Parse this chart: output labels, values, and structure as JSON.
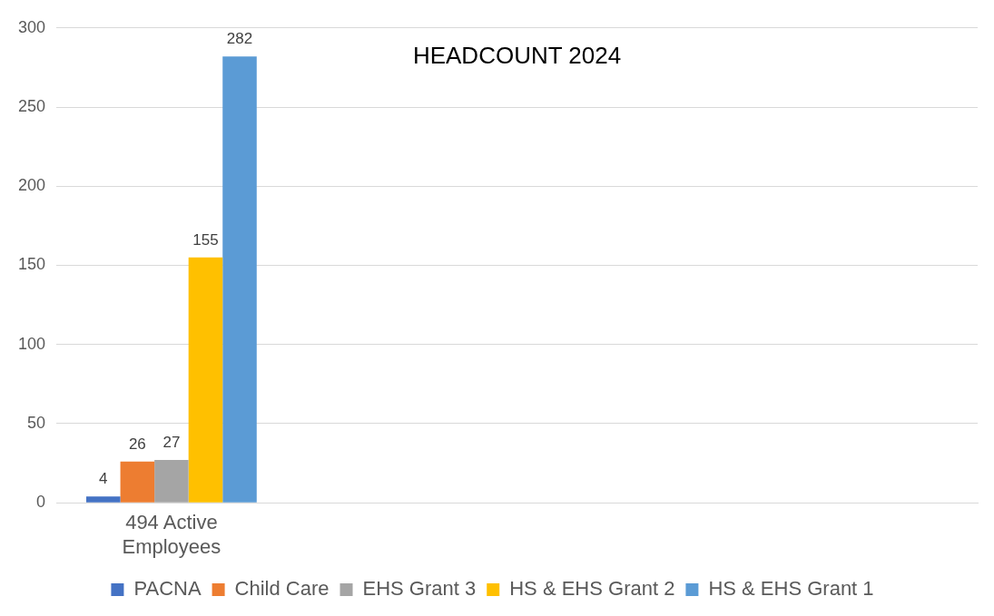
{
  "chart_data": {
    "type": "bar",
    "title": "HEADCOUNT 2024",
    "categories": [
      "494 Active Employees",
      null,
      null,
      null
    ],
    "series": [
      {
        "name": "PACNA",
        "color": "#4472c4",
        "values": [
          4,
          null,
          null,
          null
        ]
      },
      {
        "name": "Child Care",
        "color": "#ed7d31",
        "values": [
          26,
          null,
          null,
          null
        ]
      },
      {
        "name": "EHS Grant 3",
        "color": "#a5a5a5",
        "values": [
          27,
          null,
          null,
          null
        ]
      },
      {
        "name": "HS & EHS Grant 2",
        "color": "#ffc000",
        "values": [
          155,
          null,
          null,
          null
        ]
      },
      {
        "name": "HS & EHS Grant 1",
        "color": "#5b9bd5",
        "values": [
          282,
          null,
          null,
          null
        ]
      }
    ],
    "ylim": [
      0,
      300
    ],
    "yticks": [
      0,
      50,
      100,
      150,
      200,
      250,
      300
    ],
    "grid": "y",
    "legend": "bottom",
    "data_labels": true
  }
}
